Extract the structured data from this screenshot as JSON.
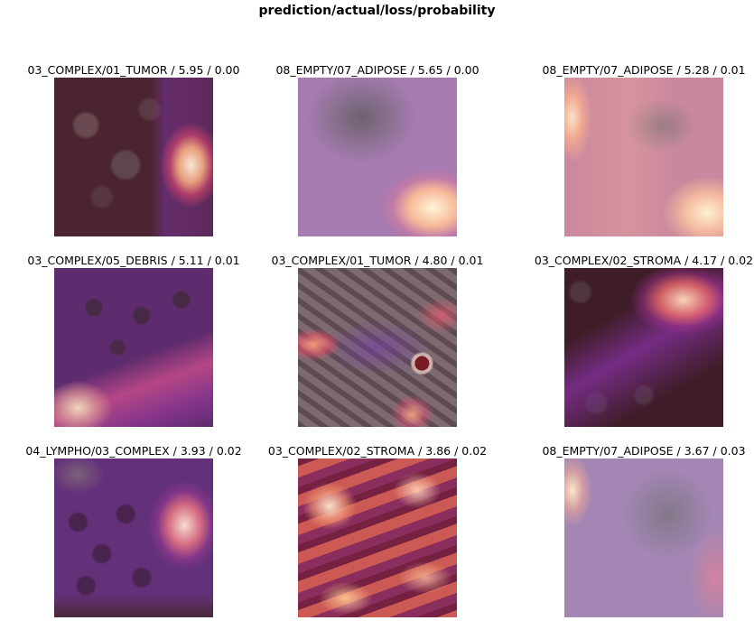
{
  "figure": {
    "title": "prediction/actual/loss/probability",
    "panels": [
      {
        "label": "03_COMPLEX/01_TUMOR / 5.95 / 0.00",
        "style": "tissue-dark"
      },
      {
        "label": "08_EMPTY/07_ADIPOSE / 5.65 / 0.00",
        "style": "blur-purple"
      },
      {
        "label": "08_EMPTY/07_ADIPOSE / 5.28 / 0.01",
        "style": "blur-pink"
      },
      {
        "label": "03_COMPLEX/05_DEBRIS / 5.11 / 0.01",
        "style": "tissue-purple"
      },
      {
        "label": "03_COMPLEX/01_TUMOR / 4.80 / 0.01",
        "style": "tissue-gray"
      },
      {
        "label": "03_COMPLEX/02_STROMA / 4.17 / 0.02",
        "style": "tissue-dark2"
      },
      {
        "label": "04_LYMPHO/03_COMPLEX / 3.93 / 0.02",
        "style": "tissue-violet"
      },
      {
        "label": "03_COMPLEX/02_STROMA / 3.86 / 0.02",
        "style": "tissue-hot"
      },
      {
        "label": "08_EMPTY/07_ADIPOSE / 3.67 / 0.03",
        "style": "blur-lilac"
      }
    ]
  }
}
